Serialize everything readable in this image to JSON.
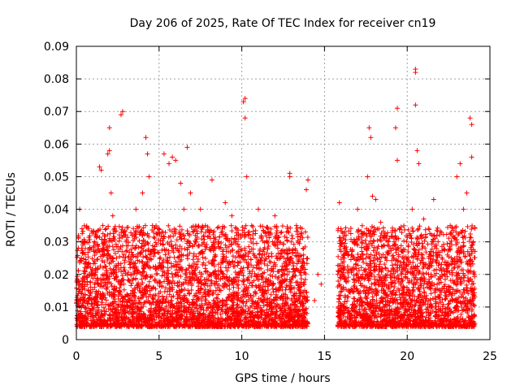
{
  "chart_data": {
    "type": "scatter",
    "title": "Day 206 of 2025, Rate Of TEC Index for receiver cn19",
    "xlabel": "GPS time / hours",
    "ylabel": "ROTI / TECUs",
    "xlim": [
      0,
      25
    ],
    "ylim": [
      0,
      0.09
    ],
    "xticks": [
      0,
      5,
      10,
      15,
      20,
      25
    ],
    "yticks": [
      0,
      0.01,
      0.02,
      0.03,
      0.04,
      0.05,
      0.06,
      0.07,
      0.08,
      0.09
    ],
    "xtick_labels": [
      "0",
      "5",
      "10",
      "15",
      "20",
      "25"
    ],
    "ytick_labels": [
      "0",
      "0.01",
      "0.02",
      "0.03",
      "0.04",
      "0.05",
      "0.06",
      "0.07",
      "0.08",
      "0.09"
    ],
    "grid": true,
    "marker": "+",
    "marker_color": "#ff0000",
    "series": [
      {
        "values": [
          [
            0.1,
            0.012
          ],
          [
            0.2,
            0.04
          ],
          [
            0.3,
            0.025
          ],
          [
            0.4,
            0.018
          ],
          [
            0.5,
            0.03
          ],
          [
            0.7,
            0.015
          ],
          [
            0.8,
            0.028
          ],
          [
            1.0,
            0.02
          ],
          [
            1.2,
            0.033
          ],
          [
            1.4,
            0.053
          ],
          [
            1.5,
            0.052
          ],
          [
            1.6,
            0.035
          ],
          [
            1.8,
            0.02
          ],
          [
            1.9,
            0.057
          ],
          [
            2.0,
            0.058
          ],
          [
            2.0,
            0.065
          ],
          [
            2.1,
            0.045
          ],
          [
            2.2,
            0.038
          ],
          [
            2.4,
            0.022
          ],
          [
            2.6,
            0.015
          ],
          [
            2.7,
            0.069
          ],
          [
            2.8,
            0.07
          ],
          [
            3.0,
            0.03
          ],
          [
            3.3,
            0.025
          ],
          [
            3.6,
            0.04
          ],
          [
            4.0,
            0.045
          ],
          [
            4.2,
            0.062
          ],
          [
            4.3,
            0.057
          ],
          [
            4.4,
            0.05
          ],
          [
            4.6,
            0.035
          ],
          [
            4.9,
            0.022
          ],
          [
            5.3,
            0.057
          ],
          [
            5.6,
            0.054
          ],
          [
            5.8,
            0.056
          ],
          [
            6.0,
            0.055
          ],
          [
            6.3,
            0.048
          ],
          [
            6.5,
            0.04
          ],
          [
            6.7,
            0.059
          ],
          [
            6.9,
            0.045
          ],
          [
            7.2,
            0.03
          ],
          [
            7.5,
            0.04
          ],
          [
            7.8,
            0.035
          ],
          [
            8.2,
            0.049
          ],
          [
            8.6,
            0.03
          ],
          [
            9.0,
            0.042
          ],
          [
            9.4,
            0.038
          ],
          [
            9.8,
            0.032
          ],
          [
            10.1,
            0.073
          ],
          [
            10.2,
            0.074
          ],
          [
            10.2,
            0.068
          ],
          [
            10.3,
            0.05
          ],
          [
            10.6,
            0.035
          ],
          [
            11.0,
            0.04
          ],
          [
            11.5,
            0.03
          ],
          [
            12.0,
            0.038
          ],
          [
            12.4,
            0.033
          ],
          [
            12.9,
            0.051
          ],
          [
            12.9,
            0.05
          ],
          [
            13.3,
            0.035
          ],
          [
            13.7,
            0.028
          ],
          [
            13.9,
            0.046
          ],
          [
            14.0,
            0.049
          ],
          [
            14.4,
            0.012
          ],
          [
            14.6,
            0.02
          ],
          [
            14.8,
            0.017
          ],
          [
            15.9,
            0.042
          ],
          [
            16.2,
            0.025
          ],
          [
            16.7,
            0.03
          ],
          [
            17.0,
            0.04
          ],
          [
            17.3,
            0.02
          ],
          [
            17.6,
            0.05
          ],
          [
            17.7,
            0.065
          ],
          [
            17.8,
            0.062
          ],
          [
            17.9,
            0.044
          ],
          [
            18.1,
            0.043
          ],
          [
            18.4,
            0.036
          ],
          [
            18.7,
            0.025
          ],
          [
            19.0,
            0.02
          ],
          [
            19.2,
            0.03
          ],
          [
            19.3,
            0.065
          ],
          [
            19.4,
            0.071
          ],
          [
            19.4,
            0.055
          ],
          [
            19.7,
            0.014
          ],
          [
            20.3,
            0.04
          ],
          [
            20.5,
            0.083
          ],
          [
            20.5,
            0.082
          ],
          [
            20.5,
            0.072
          ],
          [
            20.6,
            0.058
          ],
          [
            20.7,
            0.054
          ],
          [
            21.0,
            0.037
          ],
          [
            21.3,
            0.025
          ],
          [
            21.6,
            0.043
          ],
          [
            22.1,
            0.02
          ],
          [
            22.6,
            0.035
          ],
          [
            23.0,
            0.05
          ],
          [
            23.2,
            0.054
          ],
          [
            23.4,
            0.04
          ],
          [
            23.6,
            0.045
          ],
          [
            23.8,
            0.068
          ],
          [
            23.9,
            0.066
          ],
          [
            23.9,
            0.056
          ],
          [
            24.0,
            0.03
          ]
        ]
      }
    ],
    "dense_band": {
      "segments": [
        [
          0,
          14
        ],
        [
          15.8,
          24.1
        ]
      ],
      "y_low": 0.004,
      "y_high": 0.035
    }
  }
}
